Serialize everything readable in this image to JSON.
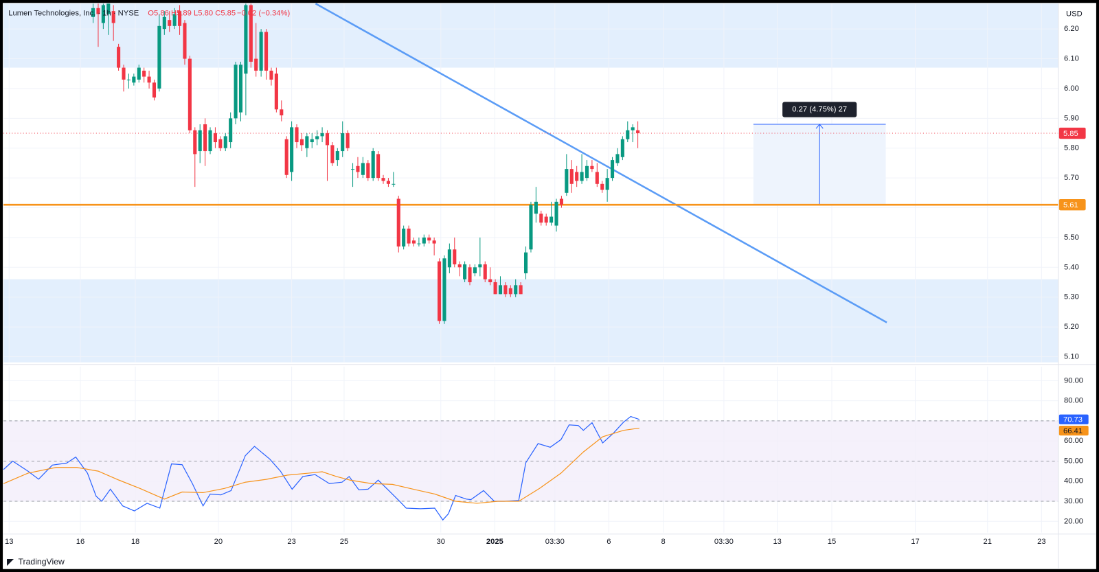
{
  "header": {
    "symbol": "Lumen Technologies, Inc. · 1h · NYSE",
    "ohlc": "O5.86 H5.89 L5.80 C5.85",
    "change": "−0.02 (−0.34%)",
    "currency": "USD"
  },
  "footer": {
    "brand": "TradingView"
  },
  "chart_data": [
    {
      "type": "candlestick",
      "up_color": "#089981",
      "down_color": "#f23645",
      "xlim": [
        -17.6,
        189.6
      ],
      "ylim": [
        5.081,
        6.285
      ],
      "yticks": [
        {
          "value": 5.1,
          "label": "5.10"
        },
        {
          "value": 5.2,
          "label": "5.20"
        },
        {
          "value": 5.3,
          "label": "5.30"
        },
        {
          "value": 5.4,
          "label": "5.40"
        },
        {
          "value": 5.5,
          "label": "5.50"
        },
        {
          "value": 5.6,
          "label": "5.60"
        },
        {
          "value": 5.7,
          "label": "5.70"
        },
        {
          "value": 5.8,
          "label": "5.80"
        },
        {
          "value": 5.9,
          "label": "5.90"
        },
        {
          "value": 6.0,
          "label": "6.00"
        },
        {
          "value": 6.1,
          "label": "6.10"
        },
        {
          "value": 6.2,
          "label": "6.20"
        }
      ],
      "xticks": [
        {
          "value": -16.5,
          "label": "13"
        },
        {
          "value": -2.5,
          "label": "16"
        },
        {
          "value": 8.3,
          "label": "18"
        },
        {
          "value": 24.6,
          "label": "20"
        },
        {
          "value": 39.0,
          "label": "23"
        },
        {
          "value": 49.3,
          "label": "25"
        },
        {
          "value": 68.3,
          "label": "30"
        },
        {
          "value": 78.9,
          "label": "2025"
        },
        {
          "value": 90.7,
          "label": "03:30"
        },
        {
          "value": 101.3,
          "label": "6"
        },
        {
          "value": 112.0,
          "label": "8"
        },
        {
          "value": 123.9,
          "label": "03:30"
        },
        {
          "value": 134.4,
          "label": "13"
        },
        {
          "value": 145.1,
          "label": "15"
        },
        {
          "value": 161.5,
          "label": "17"
        },
        {
          "value": 175.7,
          "label": "21"
        },
        {
          "value": 186.3,
          "label": "23"
        }
      ],
      "grid": true,
      "zones": [
        [
          6.07,
          6.285
        ],
        [
          5.081,
          5.36
        ]
      ],
      "zone_color": "#e3effd",
      "price_line": 5.61,
      "price_line_color": "#f7931a",
      "trendline": {
        "x": [
          43.7,
          155.9
        ],
        "y": [
          6.285,
          5.215
        ],
        "color": "#5b9cf6"
      },
      "measure": {
        "x": [
          129.7,
          155.7
        ],
        "y": [
          5.61,
          5.88
        ],
        "label": "0.27 (4.75%) 27"
      },
      "ohlc": [
        [
          6.24,
          6.3,
          6.22,
          6.27
        ],
        [
          6.27,
          6.3,
          6.14,
          6.25
        ],
        [
          6.22,
          6.3,
          6.2,
          6.28
        ],
        [
          6.25,
          6.3,
          6.18,
          6.29
        ],
        [
          6.26,
          6.28,
          6.16,
          6.22
        ],
        [
          6.14,
          6.15,
          6.06,
          6.07
        ],
        [
          6.07,
          6.08,
          5.99,
          6.03
        ],
        [
          6.03,
          6.05,
          6.0,
          6.03
        ],
        [
          6.02,
          6.05,
          6.01,
          6.04
        ],
        [
          6.03,
          6.08,
          6.02,
          6.07
        ],
        [
          6.06,
          6.07,
          6.02,
          6.04
        ],
        [
          6.04,
          6.06,
          6.0,
          6.02
        ],
        [
          6.02,
          6.03,
          5.96,
          5.97
        ],
        [
          6.0,
          6.25,
          5.99,
          6.21
        ],
        [
          6.2,
          6.26,
          6.18,
          6.24
        ],
        [
          6.23,
          6.26,
          6.19,
          6.21
        ],
        [
          6.21,
          6.27,
          6.2,
          6.25
        ],
        [
          6.26,
          6.28,
          6.18,
          6.21
        ],
        [
          6.22,
          6.23,
          6.08,
          6.1
        ],
        [
          6.1,
          6.11,
          5.85,
          5.86
        ],
        [
          5.86,
          5.87,
          5.67,
          5.78
        ],
        [
          5.79,
          5.88,
          5.75,
          5.86
        ],
        [
          5.88,
          5.9,
          5.74,
          5.79
        ],
        [
          5.79,
          5.87,
          5.78,
          5.86
        ],
        [
          5.85,
          5.87,
          5.8,
          5.82
        ],
        [
          5.83,
          5.84,
          5.79,
          5.8
        ],
        [
          5.8,
          5.85,
          5.79,
          5.84
        ],
        [
          5.82,
          5.92,
          5.8,
          5.9
        ],
        [
          5.9,
          6.09,
          5.88,
          6.08
        ],
        [
          5.92,
          6.09,
          5.89,
          6.08
        ],
        [
          6.05,
          6.3,
          5.91,
          6.28
        ],
        [
          6.28,
          6.3,
          6.07,
          6.09
        ],
        [
          6.1,
          6.22,
          6.04,
          6.06
        ],
        [
          6.06,
          6.2,
          6.04,
          6.19
        ],
        [
          6.19,
          6.2,
          6.03,
          6.06
        ],
        [
          6.06,
          6.07,
          6.01,
          6.03
        ],
        [
          6.05,
          6.07,
          5.92,
          5.93
        ],
        [
          5.93,
          5.96,
          5.89,
          5.91
        ],
        [
          5.83,
          5.84,
          5.7,
          5.71
        ],
        [
          5.72,
          5.89,
          5.69,
          5.87
        ],
        [
          5.87,
          5.88,
          5.8,
          5.82
        ],
        [
          5.83,
          5.85,
          5.79,
          5.81
        ],
        [
          5.8,
          5.85,
          5.77,
          5.84
        ],
        [
          5.82,
          5.85,
          5.8,
          5.83
        ],
        [
          5.83,
          5.86,
          5.81,
          5.84
        ],
        [
          5.84,
          5.87,
          5.82,
          5.85
        ],
        [
          5.85,
          5.86,
          5.69,
          5.81
        ],
        [
          5.81,
          5.82,
          5.74,
          5.75
        ],
        [
          5.76,
          5.8,
          5.74,
          5.79
        ],
        [
          5.79,
          5.89,
          5.77,
          5.85
        ],
        [
          5.85,
          5.86,
          5.79,
          5.8
        ],
        [
          5.73,
          5.75,
          5.67,
          5.73
        ],
        [
          5.74,
          5.77,
          5.7,
          5.72
        ],
        [
          5.71,
          5.77,
          5.7,
          5.75
        ],
        [
          5.75,
          5.76,
          5.69,
          5.7
        ],
        [
          5.7,
          5.8,
          5.69,
          5.79
        ],
        [
          5.78,
          5.79,
          5.69,
          5.7
        ],
        [
          5.7,
          5.71,
          5.68,
          5.69
        ],
        [
          5.69,
          5.7,
          5.67,
          5.68
        ],
        [
          5.68,
          5.72,
          5.67,
          5.68
        ],
        [
          5.63,
          5.64,
          5.45,
          5.47
        ],
        [
          5.47,
          5.54,
          5.46,
          5.53
        ],
        [
          5.53,
          5.54,
          5.47,
          5.48
        ],
        [
          5.49,
          5.5,
          5.47,
          5.48
        ],
        [
          5.48,
          5.5,
          5.47,
          5.48
        ],
        [
          5.48,
          5.51,
          5.47,
          5.5
        ],
        [
          5.5,
          5.51,
          5.48,
          5.49
        ],
        [
          5.49,
          5.5,
          5.44,
          5.48
        ],
        [
          5.42,
          5.43,
          5.21,
          5.22
        ],
        [
          5.22,
          5.44,
          5.21,
          5.43
        ],
        [
          5.4,
          5.48,
          5.38,
          5.46
        ],
        [
          5.46,
          5.5,
          5.4,
          5.41
        ],
        [
          5.41,
          5.42,
          5.37,
          5.4
        ],
        [
          5.36,
          5.42,
          5.35,
          5.41
        ],
        [
          5.4,
          5.41,
          5.34,
          5.35
        ],
        [
          5.38,
          5.41,
          5.37,
          5.4
        ],
        [
          5.4,
          5.5,
          5.37,
          5.41
        ],
        [
          5.41,
          5.42,
          5.35,
          5.36
        ],
        [
          5.36,
          5.4,
          5.34,
          5.35
        ],
        [
          5.35,
          5.36,
          5.31,
          5.31
        ],
        [
          5.31,
          5.37,
          5.31,
          5.34
        ],
        [
          5.34,
          5.35,
          5.3,
          5.31
        ],
        [
          5.33,
          5.34,
          5.3,
          5.31
        ],
        [
          5.31,
          5.36,
          5.3,
          5.34
        ],
        [
          5.34,
          5.35,
          5.31,
          5.31
        ],
        [
          5.38,
          5.47,
          5.36,
          5.45
        ],
        [
          5.46,
          5.62,
          5.45,
          5.61
        ],
        [
          5.58,
          5.67,
          5.55,
          5.62
        ],
        [
          5.58,
          5.59,
          5.54,
          5.55
        ],
        [
          5.57,
          5.58,
          5.54,
          5.55
        ],
        [
          5.55,
          5.62,
          5.54,
          5.57
        ],
        [
          5.54,
          5.63,
          5.52,
          5.62
        ],
        [
          5.63,
          5.64,
          5.6,
          5.61
        ],
        [
          5.65,
          5.78,
          5.64,
          5.73
        ],
        [
          5.73,
          5.76,
          5.65,
          5.68
        ],
        [
          5.72,
          5.74,
          5.67,
          5.69
        ],
        [
          5.69,
          5.78,
          5.68,
          5.72
        ],
        [
          5.7,
          5.76,
          5.69,
          5.74
        ],
        [
          5.74,
          5.76,
          5.72,
          5.73
        ],
        [
          5.72,
          5.75,
          5.67,
          5.68
        ],
        [
          5.68,
          5.69,
          5.65,
          5.66
        ],
        [
          5.66,
          5.73,
          5.62,
          5.7
        ],
        [
          5.7,
          5.77,
          5.69,
          5.76
        ],
        [
          5.75,
          5.8,
          5.74,
          5.78
        ],
        [
          5.77,
          5.84,
          5.76,
          5.83
        ],
        [
          5.83,
          5.89,
          5.82,
          5.86
        ],
        [
          5.86,
          5.88,
          5.82,
          5.87
        ],
        [
          5.86,
          5.89,
          5.8,
          5.85
        ]
      ]
    },
    {
      "type": "line",
      "xlim": [
        -17.6,
        189.6
      ],
      "ylim": [
        14.4,
        97
      ],
      "yticks": [
        {
          "value": 20,
          "label": "20.00"
        },
        {
          "value": 30,
          "label": "30.00"
        },
        {
          "value": 40,
          "label": "40.00"
        },
        {
          "value": 50,
          "label": "50.00"
        },
        {
          "value": 60,
          "label": "60.00"
        },
        {
          "value": 70,
          "label": "70.00"
        },
        {
          "value": 80,
          "label": "80.00"
        },
        {
          "value": 90,
          "label": "90.00"
        }
      ],
      "grid": true,
      "levels": [
        70,
        50,
        30
      ],
      "band": [
        30,
        70
      ],
      "band_color": "#f3eefa",
      "series": [
        {
          "color": "#2962ff",
          "x": [
            -17.6,
            -15.8,
            -12.8,
            -10.7,
            -8.0,
            -5.2,
            -3.4,
            -1.1,
            0.6,
            1.7,
            3.4,
            5.8,
            8.1,
            10.6,
            13.1,
            15.4,
            17.5,
            19.5,
            21.6,
            23.0,
            25.1,
            27.1,
            29.9,
            31.7,
            34.7,
            36.8,
            39.1,
            41.2,
            43.6,
            46.4,
            48.9,
            50.3,
            52.2,
            54.0,
            56.0,
            58.1,
            60.2,
            61.5,
            64.3,
            67.1,
            68.7,
            69.8,
            71.2,
            73.3,
            74.2,
            76.7,
            78.8,
            80.8,
            83.6,
            85.0,
            87.4,
            89.8,
            91.9,
            93.5,
            95.3,
            96.3,
            98.0,
            100.1,
            102.2,
            104.2,
            105.6,
            107.3
          ],
          "values": [
            45.8,
            50,
            45,
            41,
            48,
            49,
            52,
            44,
            32.5,
            30,
            36,
            27.7,
            25.2,
            29,
            26.6,
            48.6,
            48.2,
            38.8,
            27.7,
            33.6,
            33.2,
            35.3,
            52.7,
            57.3,
            51,
            45,
            36,
            42.3,
            43.3,
            38.8,
            39.5,
            42.3,
            35.7,
            36,
            40.5,
            35.3,
            30,
            26.6,
            26.3,
            26.6,
            20.7,
            23.8,
            32.9,
            31.1,
            30.8,
            35.3,
            30,
            30,
            30.4,
            49.2,
            58.7,
            56.9,
            60.7,
            68,
            67.7,
            65.3,
            69.1,
            59,
            63.9,
            69.4,
            72.2,
            70.73
          ]
        },
        {
          "color": "#f7931a",
          "x": [
            -17.6,
            -12.8,
            -7.3,
            -3.2,
            1.0,
            5.1,
            9.2,
            14.0,
            17.5,
            21.6,
            25.8,
            29.9,
            34.0,
            38.2,
            42.3,
            45.0,
            47.8,
            50.5,
            54.7,
            58.8,
            62.9,
            67.1,
            71.2,
            75.4,
            79.5,
            83.6,
            87.7,
            91.9,
            96.3,
            100.1,
            104.2,
            107.3
          ],
          "values": [
            38.8,
            44,
            46.8,
            46.8,
            45,
            40.5,
            36.4,
            31.1,
            34.6,
            34.3,
            36.4,
            39.5,
            40.9,
            43,
            44,
            44.7,
            42.3,
            40.5,
            38.8,
            38.4,
            36,
            33.6,
            30,
            29,
            30,
            30,
            36.4,
            44,
            54.5,
            62.1,
            65.3,
            66.41
          ]
        }
      ]
    }
  ]
}
